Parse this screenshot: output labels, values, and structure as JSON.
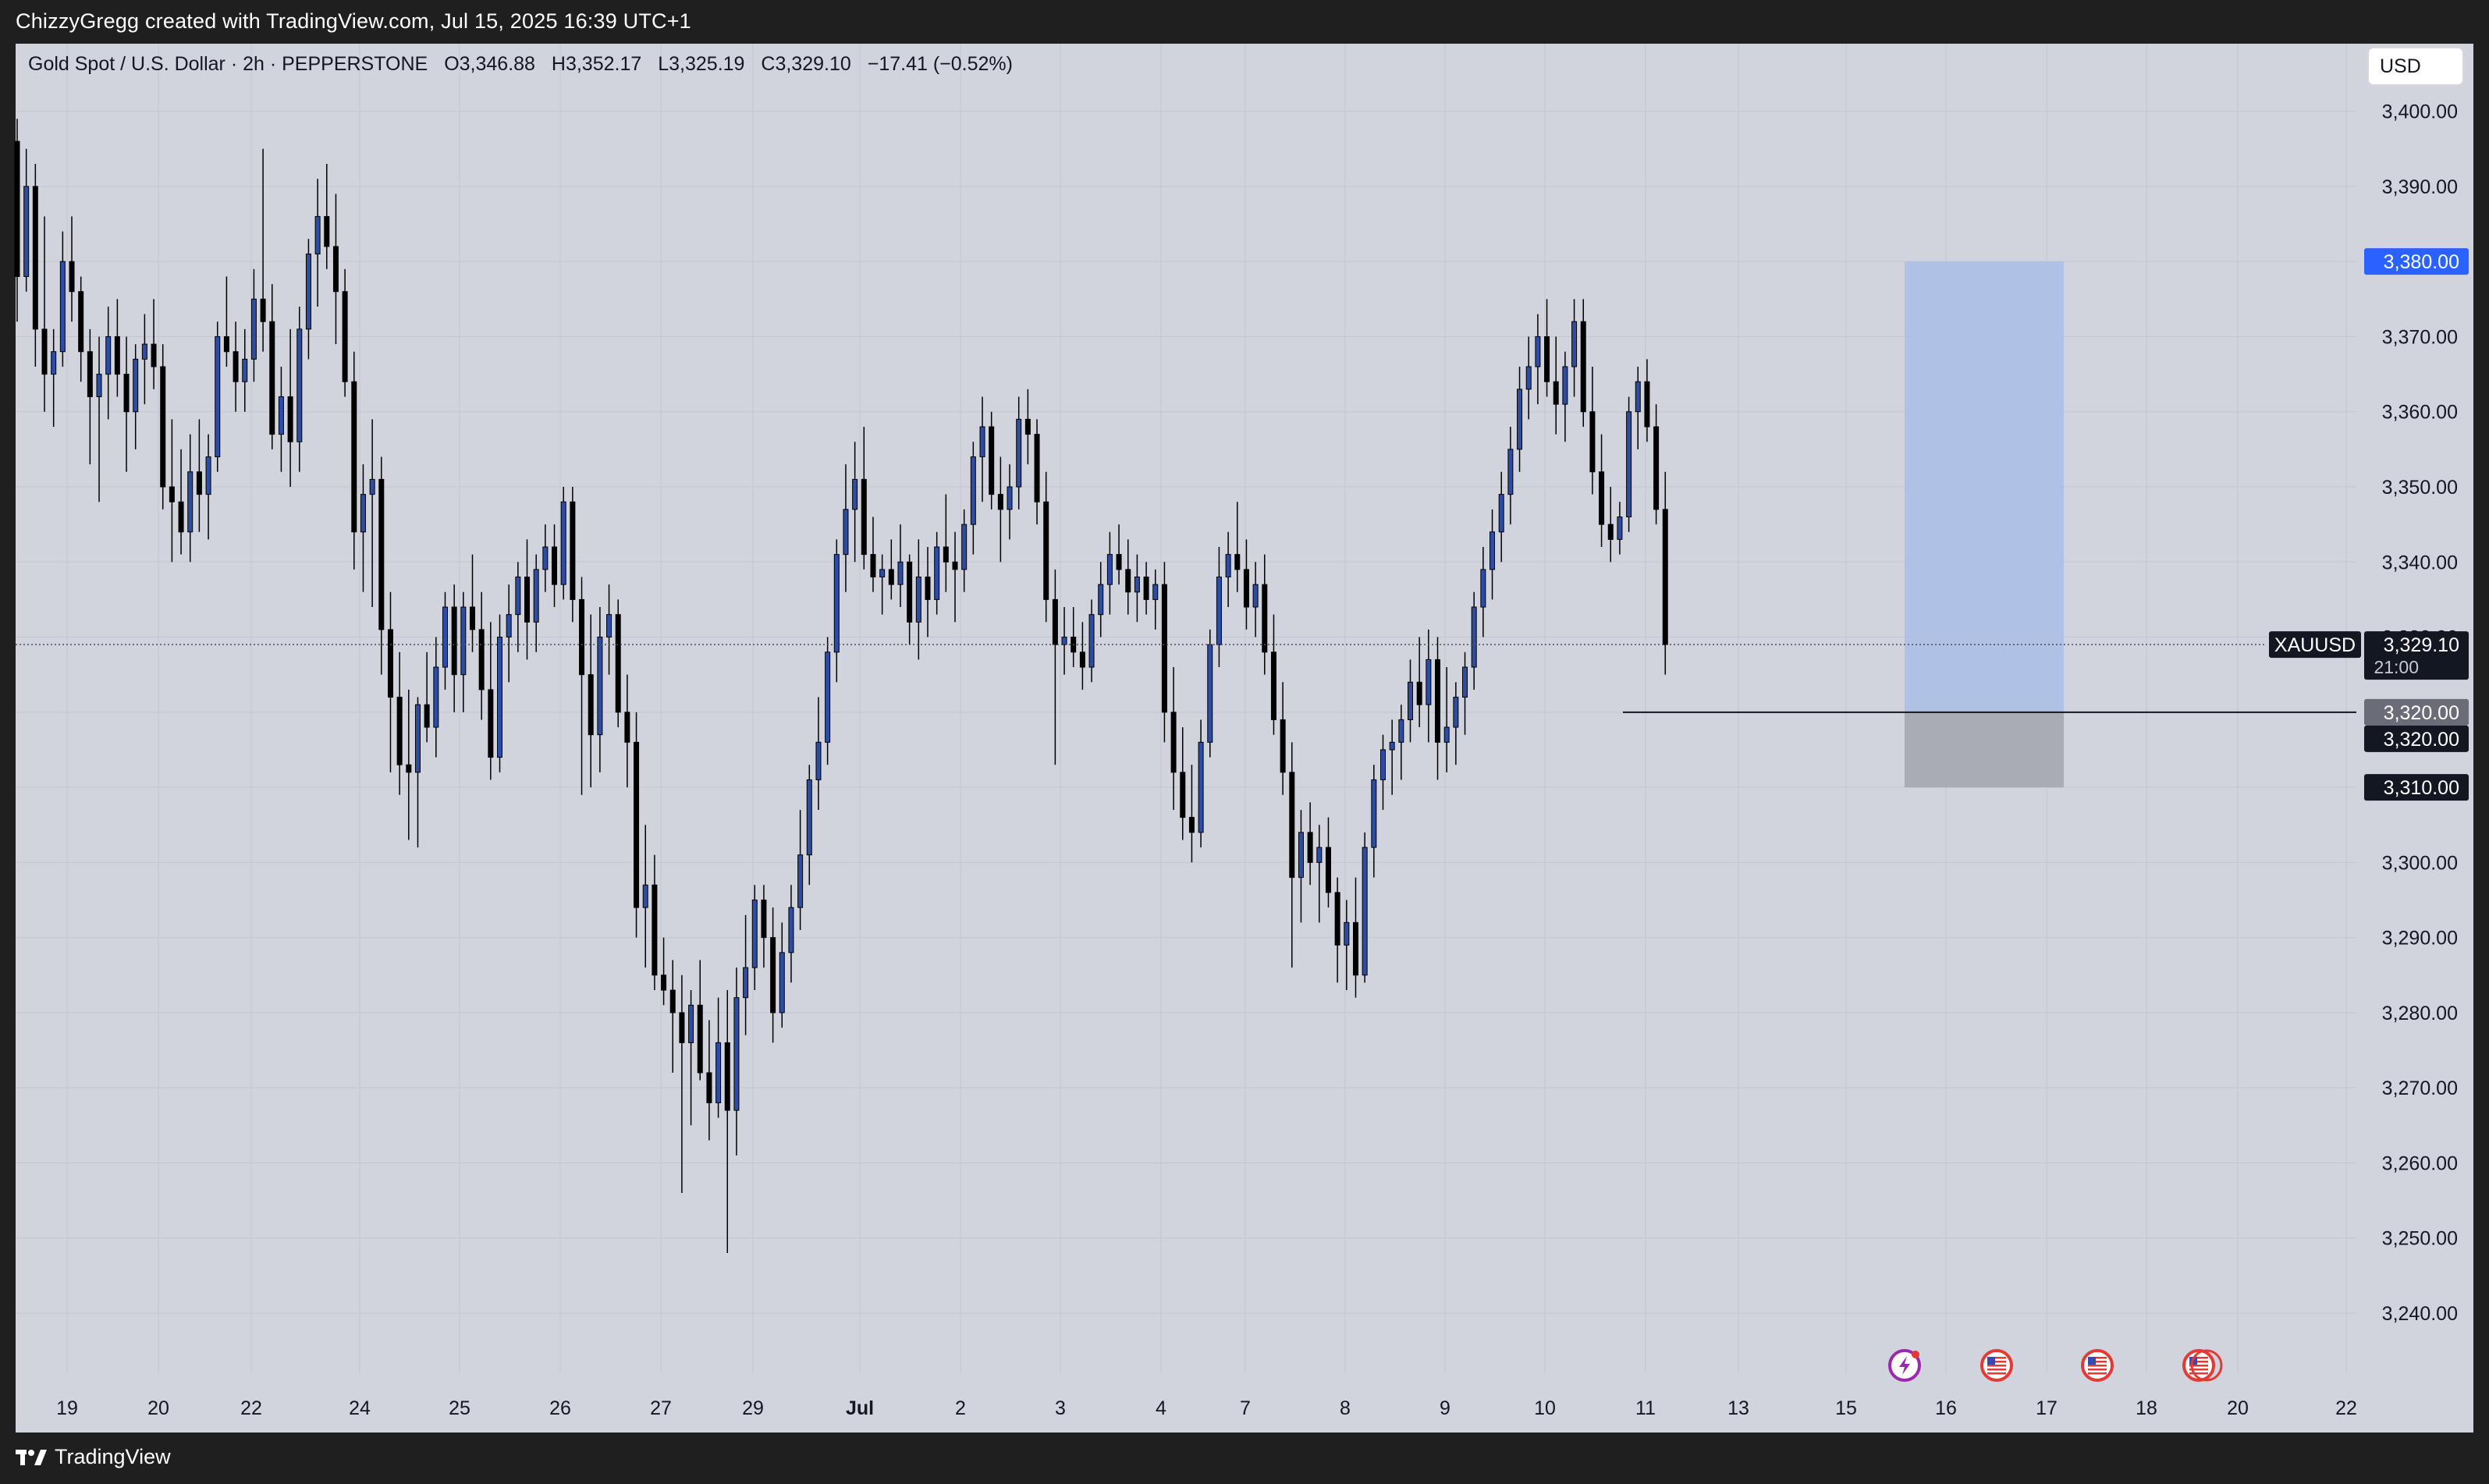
{
  "header": {
    "created_by": "ChizzyGregg created with TradingView.com, Jul 15, 2025 16:39 UTC+1"
  },
  "footer": {
    "brand": "TradingView"
  },
  "legend": {
    "symbol_name": "Gold Spot / U.S. Dollar · 2h · PEPPERSTONE",
    "open": "O3,346.88",
    "high": "H3,352.17",
    "low": "L3,325.19",
    "close": "C3,329.10",
    "change": "−17.41 (−0.52%)"
  },
  "currency_button": {
    "label": "USD"
  },
  "colors": {
    "up_candle": "#2d4ca4",
    "down_candle": "#000000",
    "background": "#d1d4dc",
    "target_zone": "#a9bde6",
    "stop_zone": "#a3a5ab",
    "accent_price": "#2962ff"
  },
  "event_icons": [
    "lightning-icon",
    "us-flag-icon",
    "us-flag-icon",
    "us-flag-icon"
  ],
  "chart_data": {
    "type": "candlestick",
    "symbol": "XAUUSD",
    "interval": "2h",
    "ylim": [
      3232,
      3409
    ],
    "y_ticks": [
      "3,240.00",
      "3,250.00",
      "3,260.00",
      "3,270.00",
      "3,280.00",
      "3,290.00",
      "3,300.00",
      "3,310.00",
      "3,320.00",
      "3,330.00",
      "3,340.00",
      "3,350.00",
      "3,360.00",
      "3,370.00",
      "3,380.00",
      "3,390.00",
      "3,400.00"
    ],
    "x_tick_labels": [
      "19",
      "20",
      "22",
      "24",
      "25",
      "26",
      "27",
      "29",
      "Jul",
      "2",
      "3",
      "4",
      "7",
      "8",
      "9",
      "10",
      "11",
      "13",
      "15",
      "16",
      "17",
      "18",
      "20",
      "22"
    ],
    "price_labels": {
      "symbol": "XAUUSD",
      "last": "3,329.10",
      "countdown": "21:00",
      "target": "3,380.00",
      "entry_a": "3,320.00",
      "entry_b": "3,320.00",
      "stop": "3,310.00"
    },
    "position_tool": {
      "entry": 3320,
      "target": 3380,
      "stop": 3310
    },
    "candles": [
      [
        3396,
        3399,
        3372,
        3378
      ],
      [
        3378,
        3395,
        3376,
        3390
      ],
      [
        3390,
        3393,
        3366,
        3371
      ],
      [
        3371,
        3386,
        3360,
        3365
      ],
      [
        3365,
        3371,
        3358,
        3368
      ],
      [
        3368,
        3384,
        3366,
        3380
      ],
      [
        3380,
        3386,
        3372,
        3376
      ],
      [
        3376,
        3378,
        3364,
        3368
      ],
      [
        3368,
        3371,
        3353,
        3362
      ],
      [
        3362,
        3370,
        3348,
        3365
      ],
      [
        3365,
        3374,
        3359,
        3370
      ],
      [
        3370,
        3375,
        3362,
        3365
      ],
      [
        3365,
        3370,
        3352,
        3360
      ],
      [
        3360,
        3369,
        3355,
        3367
      ],
      [
        3367,
        3373,
        3361,
        3369
      ],
      [
        3369,
        3375,
        3363,
        3366
      ],
      [
        3366,
        3369,
        3347,
        3350
      ],
      [
        3350,
        3359,
        3340,
        3348
      ],
      [
        3348,
        3355,
        3341,
        3344
      ],
      [
        3344,
        3357,
        3340,
        3352
      ],
      [
        3352,
        3359,
        3344,
        3349
      ],
      [
        3349,
        3357,
        3343,
        3354
      ],
      [
        3354,
        3372,
        3352,
        3370
      ],
      [
        3370,
        3378,
        3366,
        3368
      ],
      [
        3368,
        3372,
        3360,
        3364
      ],
      [
        3364,
        3371,
        3360,
        3367
      ],
      [
        3367,
        3379,
        3364,
        3375
      ],
      [
        3375,
        3395,
        3368,
        3372
      ],
      [
        3372,
        3377,
        3355,
        3357
      ],
      [
        3357,
        3366,
        3352,
        3362
      ],
      [
        3362,
        3371,
        3350,
        3356
      ],
      [
        3356,
        3374,
        3352,
        3371
      ],
      [
        3371,
        3383,
        3367,
        3381
      ],
      [
        3381,
        3391,
        3374,
        3386
      ],
      [
        3386,
        3393,
        3379,
        3382
      ],
      [
        3382,
        3389,
        3369,
        3376
      ],
      [
        3376,
        3379,
        3362,
        3364
      ],
      [
        3364,
        3368,
        3339,
        3344
      ],
      [
        3344,
        3353,
        3336,
        3349
      ],
      [
        3349,
        3359,
        3334,
        3351
      ],
      [
        3351,
        3354,
        3325,
        3331
      ],
      [
        3331,
        3336,
        3312,
        3322
      ],
      [
        3322,
        3328,
        3309,
        3313
      ],
      [
        3313,
        3323,
        3303,
        3312
      ],
      [
        3312,
        3322,
        3302,
        3321
      ],
      [
        3321,
        3328,
        3316,
        3318
      ],
      [
        3318,
        3330,
        3314,
        3326
      ],
      [
        3326,
        3336,
        3323,
        3334
      ],
      [
        3334,
        3337,
        3320,
        3325
      ],
      [
        3325,
        3336,
        3320,
        3334
      ],
      [
        3334,
        3341,
        3328,
        3331
      ],
      [
        3331,
        3336,
        3319,
        3323
      ],
      [
        3323,
        3332,
        3311,
        3314
      ],
      [
        3314,
        3333,
        3312,
        3330
      ],
      [
        3330,
        3337,
        3324,
        3333
      ],
      [
        3333,
        3340,
        3328,
        3338
      ],
      [
        3338,
        3343,
        3327,
        3332
      ],
      [
        3332,
        3341,
        3328,
        3339
      ],
      [
        3339,
        3345,
        3336,
        3342
      ],
      [
        3342,
        3345,
        3334,
        3337
      ],
      [
        3337,
        3350,
        3335,
        3348
      ],
      [
        3348,
        3350,
        3332,
        3335
      ],
      [
        3335,
        3338,
        3309,
        3325
      ],
      [
        3325,
        3333,
        3310,
        3317
      ],
      [
        3317,
        3334,
        3312,
        3330
      ],
      [
        3330,
        3337,
        3325,
        3333
      ],
      [
        3333,
        3335,
        3318,
        3320
      ],
      [
        3320,
        3325,
        3310,
        3316
      ],
      [
        3316,
        3320,
        3290,
        3294
      ],
      [
        3294,
        3305,
        3286,
        3297
      ],
      [
        3297,
        3301,
        3283,
        3285
      ],
      [
        3285,
        3290,
        3281,
        3283
      ],
      [
        3283,
        3287,
        3272,
        3280
      ],
      [
        3280,
        3285,
        3256,
        3276
      ],
      [
        3276,
        3283,
        3265,
        3281
      ],
      [
        3281,
        3287,
        3271,
        3272
      ],
      [
        3272,
        3279,
        3263,
        3268
      ],
      [
        3268,
        3282,
        3266,
        3276
      ],
      [
        3276,
        3283,
        3248,
        3267
      ],
      [
        3267,
        3286,
        3261,
        3282
      ],
      [
        3282,
        3293,
        3277,
        3286
      ],
      [
        3286,
        3297,
        3283,
        3295
      ],
      [
        3295,
        3297,
        3286,
        3290
      ],
      [
        3290,
        3294,
        3276,
        3280
      ],
      [
        3280,
        3292,
        3278,
        3288
      ],
      [
        3288,
        3297,
        3284,
        3294
      ],
      [
        3294,
        3307,
        3291,
        3301
      ],
      [
        3301,
        3313,
        3297,
        3311
      ],
      [
        3311,
        3322,
        3307,
        3316
      ],
      [
        3316,
        3330,
        3313,
        3328
      ],
      [
        3328,
        3343,
        3324,
        3341
      ],
      [
        3341,
        3353,
        3336,
        3347
      ],
      [
        3347,
        3356,
        3340,
        3351
      ],
      [
        3351,
        3358,
        3339,
        3341
      ],
      [
        3341,
        3346,
        3336,
        3338
      ],
      [
        3338,
        3341,
        3333,
        3339
      ],
      [
        3339,
        3343,
        3335,
        3337
      ],
      [
        3337,
        3345,
        3334,
        3340
      ],
      [
        3340,
        3341,
        3329,
        3332
      ],
      [
        3332,
        3343,
        3327,
        3338
      ],
      [
        3338,
        3342,
        3330,
        3335
      ],
      [
        3335,
        3344,
        3333,
        3342
      ],
      [
        3342,
        3349,
        3336,
        3340
      ],
      [
        3340,
        3344,
        3332,
        3339
      ],
      [
        3339,
        3347,
        3336,
        3345
      ],
      [
        3345,
        3356,
        3341,
        3354
      ],
      [
        3354,
        3362,
        3348,
        3358
      ],
      [
        3358,
        3360,
        3347,
        3349
      ],
      [
        3349,
        3354,
        3340,
        3347
      ],
      [
        3347,
        3353,
        3343,
        3350
      ],
      [
        3350,
        3362,
        3347,
        3359
      ],
      [
        3359,
        3363,
        3353,
        3357
      ],
      [
        3357,
        3359,
        3345,
        3348
      ],
      [
        3348,
        3352,
        3332,
        3335
      ],
      [
        3335,
        3339,
        3313,
        3329
      ],
      [
        3329,
        3334,
        3325,
        3330
      ],
      [
        3330,
        3334,
        3326,
        3328
      ],
      [
        3328,
        3332,
        3323,
        3326
      ],
      [
        3326,
        3335,
        3324,
        3333
      ],
      [
        3333,
        3340,
        3330,
        3337
      ],
      [
        3337,
        3344,
        3333,
        3341
      ],
      [
        3341,
        3345,
        3337,
        3339
      ],
      [
        3339,
        3343,
        3333,
        3336
      ],
      [
        3336,
        3341,
        3332,
        3338
      ],
      [
        3338,
        3340,
        3333,
        3335
      ],
      [
        3335,
        3339,
        3331,
        3337
      ],
      [
        3337,
        3340,
        3316,
        3320
      ],
      [
        3320,
        3326,
        3307,
        3312
      ],
      [
        3312,
        3318,
        3303,
        3306
      ],
      [
        3306,
        3313,
        3300,
        3304
      ],
      [
        3304,
        3319,
        3302,
        3316
      ],
      [
        3316,
        3331,
        3314,
        3329
      ],
      [
        3329,
        3342,
        3326,
        3338
      ],
      [
        3338,
        3344,
        3334,
        3341
      ],
      [
        3341,
        3348,
        3336,
        3339
      ],
      [
        3339,
        3343,
        3331,
        3334
      ],
      [
        3334,
        3340,
        3330,
        3337
      ],
      [
        3337,
        3341,
        3325,
        3328
      ],
      [
        3328,
        3333,
        3317,
        3319
      ],
      [
        3319,
        3324,
        3309,
        3312
      ],
      [
        3312,
        3316,
        3286,
        3298
      ],
      [
        3298,
        3307,
        3292,
        3304
      ],
      [
        3304,
        3308,
        3297,
        3300
      ],
      [
        3300,
        3305,
        3292,
        3302
      ],
      [
        3302,
        3306,
        3294,
        3296
      ],
      [
        3296,
        3298,
        3284,
        3289
      ],
      [
        3289,
        3295,
        3283,
        3292
      ],
      [
        3292,
        3298,
        3282,
        3285
      ],
      [
        3285,
        3304,
        3284,
        3302
      ],
      [
        3302,
        3313,
        3298,
        3311
      ],
      [
        3311,
        3317,
        3307,
        3315
      ],
      [
        3315,
        3319,
        3309,
        3316
      ],
      [
        3316,
        3321,
        3311,
        3319
      ],
      [
        3319,
        3327,
        3316,
        3324
      ],
      [
        3324,
        3330,
        3318,
        3321
      ],
      [
        3321,
        3331,
        3316,
        3327
      ],
      [
        3327,
        3330,
        3311,
        3316
      ],
      [
        3316,
        3326,
        3312,
        3318
      ],
      [
        3318,
        3324,
        3313,
        3322
      ],
      [
        3322,
        3328,
        3317,
        3326
      ],
      [
        3326,
        3336,
        3323,
        3334
      ],
      [
        3334,
        3342,
        3330,
        3339
      ],
      [
        3339,
        3347,
        3335,
        3344
      ],
      [
        3344,
        3352,
        3340,
        3349
      ],
      [
        3349,
        3358,
        3345,
        3355
      ],
      [
        3355,
        3366,
        3352,
        3363
      ],
      [
        3363,
        3370,
        3359,
        3366
      ],
      [
        3366,
        3373,
        3361,
        3370
      ],
      [
        3370,
        3375,
        3362,
        3364
      ],
      [
        3364,
        3370,
        3357,
        3361
      ],
      [
        3361,
        3368,
        3356,
        3366
      ],
      [
        3366,
        3375,
        3362,
        3372
      ],
      [
        3372,
        3375,
        3358,
        3360
      ],
      [
        3360,
        3366,
        3349,
        3352
      ],
      [
        3352,
        3357,
        3342,
        3345
      ],
      [
        3345,
        3350,
        3340,
        3343
      ],
      [
        3343,
        3348,
        3341,
        3346
      ],
      [
        3346,
        3362,
        3344,
        3360
      ],
      [
        3360,
        3366,
        3355,
        3364
      ],
      [
        3364,
        3367,
        3356,
        3358
      ],
      [
        3358,
        3361,
        3345,
        3347
      ],
      [
        3347,
        3352,
        3325,
        3329
      ]
    ]
  }
}
